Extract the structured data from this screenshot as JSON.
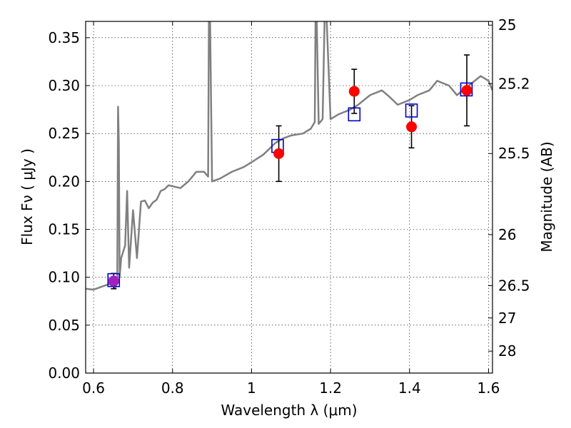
{
  "chart_data": {
    "type": "scatter",
    "xlabel": "Wavelength  λ (μm)",
    "ylabel_left": "Flux  Fν  ( μJy )",
    "ylabel_right": "Magnitude (AB)",
    "xlim": [
      0.58,
      1.61
    ],
    "ylim": [
      0.0,
      0.367
    ],
    "grid": true,
    "x_ticks": [
      0.6,
      0.8,
      1.0,
      1.2,
      1.4,
      1.6
    ],
    "x_tick_labels": [
      "0.6",
      "0.8",
      "1",
      "1.2",
      "1.4",
      "1.6"
    ],
    "y_ticks": [
      0.0,
      0.05,
      0.1,
      0.15,
      0.2,
      0.25,
      0.3,
      0.35
    ],
    "y_tick_labels": [
      "0.00",
      "0.05",
      "0.10",
      "0.15",
      "0.20",
      "0.25",
      "0.30",
      "0.35"
    ],
    "right_ticks": [
      {
        "label": "25",
        "flux": 0.3631
      },
      {
        "label": "25.2",
        "flux": 0.302
      },
      {
        "label": "25.5",
        "flux": 0.2291
      },
      {
        "label": "26",
        "flux": 0.1445
      },
      {
        "label": "26.5",
        "flux": 0.0912
      },
      {
        "label": "27",
        "flux": 0.0575
      },
      {
        "label": "28",
        "flux": 0.0229
      }
    ],
    "series": [
      {
        "kind": "line",
        "color": "#808080",
        "x": [
          0.58,
          0.6,
          0.62,
          0.64,
          0.655,
          0.66,
          0.662,
          0.664,
          0.666,
          0.67,
          0.68,
          0.685,
          0.69,
          0.7,
          0.71,
          0.72,
          0.73,
          0.74,
          0.75,
          0.76,
          0.77,
          0.78,
          0.79,
          0.8,
          0.82,
          0.84,
          0.86,
          0.88,
          0.89,
          0.892,
          0.895,
          0.9,
          0.92,
          0.95,
          0.98,
          1.0,
          1.03,
          1.06,
          1.08,
          1.1,
          1.13,
          1.15,
          1.16,
          1.162,
          1.165,
          1.17,
          1.18,
          1.185,
          1.19,
          1.2,
          1.22,
          1.25,
          1.27,
          1.3,
          1.33,
          1.35,
          1.37,
          1.4,
          1.42,
          1.45,
          1.47,
          1.5,
          1.52,
          1.55,
          1.58,
          1.6,
          1.61
        ],
        "y": [
          0.088,
          0.087,
          0.09,
          0.093,
          0.089,
          0.095,
          0.278,
          0.24,
          0.1,
          0.12,
          0.133,
          0.19,
          0.11,
          0.17,
          0.12,
          0.179,
          0.18,
          0.172,
          0.178,
          0.181,
          0.19,
          0.192,
          0.196,
          0.195,
          0.193,
          0.2,
          0.21,
          0.21,
          0.205,
          0.37,
          0.37,
          0.2,
          0.203,
          0.21,
          0.215,
          0.22,
          0.228,
          0.24,
          0.245,
          0.248,
          0.25,
          0.255,
          0.262,
          0.37,
          0.37,
          0.26,
          0.265,
          0.37,
          0.37,
          0.265,
          0.27,
          0.275,
          0.28,
          0.29,
          0.295,
          0.288,
          0.28,
          0.285,
          0.29,
          0.295,
          0.305,
          0.3,
          0.29,
          0.3,
          0.31,
          0.305,
          0.295
        ]
      },
      {
        "kind": "markers",
        "name": "",
        "marker": "circle",
        "color": "#ff0000",
        "x": [
          0.651,
          1.069,
          1.26,
          1.405,
          1.545
        ],
        "y": [
          0.096,
          0.229,
          0.294,
          0.257,
          0.295
        ],
        "yerr": [
          0.008,
          0.029,
          0.023,
          0.022,
          0.037
        ]
      },
      {
        "kind": "markers",
        "name": "",
        "marker": "square",
        "color": "#0000cc",
        "x": [
          0.651,
          1.066,
          1.26,
          1.405,
          1.544
        ],
        "y": [
          0.097,
          0.237,
          0.27,
          0.274,
          0.296
        ]
      }
    ],
    "overlap_point": {
      "x": 0.651,
      "y": 0.096,
      "color": "#a020c0"
    }
  }
}
